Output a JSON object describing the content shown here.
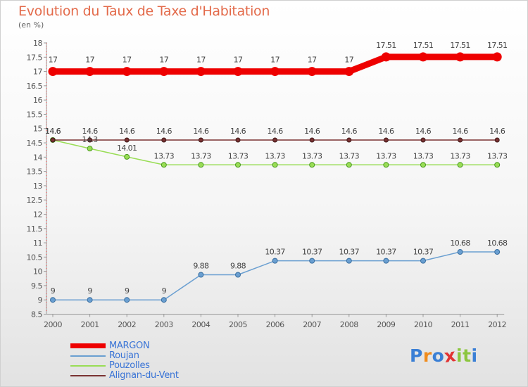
{
  "chart_data": {
    "type": "line",
    "title": "Evolution du Taux de Taxe d'Habitation",
    "subtitle": "(en %)",
    "x": [
      "2000",
      "2001",
      "2002",
      "2003",
      "2004",
      "2005",
      "2006",
      "2007",
      "2008",
      "2009",
      "2010",
      "2011",
      "2012"
    ],
    "ylim": [
      8.5,
      18
    ],
    "yticks": [
      "8.5",
      "9",
      "9.5",
      "10",
      "10.5",
      "11",
      "11.5",
      "12",
      "12.5",
      "13",
      "13.5",
      "14",
      "14.5",
      "15",
      "15.5",
      "16",
      "16.5",
      "17",
      "17.5",
      "18"
    ],
    "grid": false,
    "legend_position": "bottom-left",
    "series": [
      {
        "name": "MARGON",
        "color": "#ee0000",
        "values": [
          17,
          17,
          17,
          17,
          17,
          17,
          17,
          17,
          17,
          17.51,
          17.51,
          17.51,
          17.51
        ],
        "labels": [
          "17",
          "17",
          "17",
          "17",
          "17",
          "17",
          "17",
          "17",
          "17",
          "17.51",
          "17.51",
          "17.51",
          "17.51"
        ]
      },
      {
        "name": "Roujan",
        "color": "#6a9fd1",
        "values": [
          9,
          9,
          9,
          9,
          9.88,
          9.88,
          10.37,
          10.37,
          10.37,
          10.37,
          10.37,
          10.68,
          10.68
        ],
        "labels": [
          "9",
          "9",
          "9",
          "9",
          "9.88",
          "9.88",
          "10.37",
          "10.37",
          "10.37",
          "10.37",
          "10.37",
          "10.68",
          "10.68"
        ]
      },
      {
        "name": "Pouzolles",
        "color": "#99dd55",
        "values": [
          14.6,
          14.3,
          14.01,
          13.73,
          13.73,
          13.73,
          13.73,
          13.73,
          13.73,
          13.73,
          13.73,
          13.73,
          13.73
        ],
        "labels": [
          "14.6",
          "14.3",
          "14.01",
          "13.73",
          "13.73",
          "13.73",
          "13.73",
          "13.73",
          "13.73",
          "13.73",
          "13.73",
          "13.73",
          "13.73"
        ]
      },
      {
        "name": "Alignan-du-Vent",
        "color": "#7a3333",
        "values": [
          14.6,
          14.6,
          14.6,
          14.6,
          14.6,
          14.6,
          14.6,
          14.6,
          14.6,
          14.6,
          14.6,
          14.6,
          14.6
        ],
        "labels": [
          "14.6",
          "14.6",
          "14.6",
          "14.6",
          "14.6",
          "14.6",
          "14.6",
          "14.6",
          "14.6",
          "14.6",
          "14.6",
          "14.6",
          "14.6"
        ]
      }
    ]
  },
  "branding": {
    "logo_text": "Proxiti",
    "logo_colors": [
      "#3a7fd5",
      "#f08c1e",
      "#3a7fd5",
      "#e23434",
      "#8cc63f",
      "#8cc63f",
      "#3a7fd5"
    ]
  }
}
